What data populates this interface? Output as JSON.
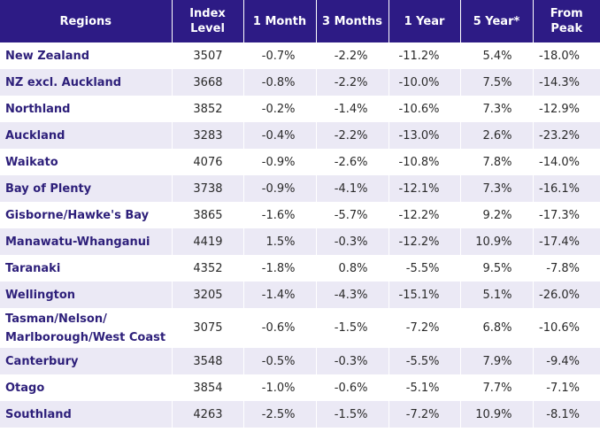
{
  "table": {
    "headers": [
      "Regions",
      "Index Level",
      "1 Month",
      "3 Months",
      "1 Year",
      "5 Year*",
      "From Peak"
    ],
    "rows": [
      [
        "New Zealand",
        "3507",
        "-0.7%",
        "-2.2%",
        "-11.2%",
        "5.4%",
        "-18.0%"
      ],
      [
        "NZ excl. Auckland",
        "3668",
        "-0.8%",
        "-2.2%",
        "-10.0%",
        "7.5%",
        "-14.3%"
      ],
      [
        "Northland",
        "3852",
        "-0.2%",
        "-1.4%",
        "-10.6%",
        "7.3%",
        "-12.9%"
      ],
      [
        "Auckland",
        "3283",
        "-0.4%",
        "-2.2%",
        "-13.0%",
        "2.6%",
        "-23.2%"
      ],
      [
        "Waikato",
        "4076",
        "-0.9%",
        "-2.6%",
        "-10.8%",
        "7.8%",
        "-14.0%"
      ],
      [
        "Bay of Plenty",
        "3738",
        "-0.9%",
        "-4.1%",
        "-12.1%",
        "7.3%",
        "-16.1%"
      ],
      [
        "Gisborne/Hawke's Bay",
        "3865",
        "-1.6%",
        "-5.7%",
        "-12.2%",
        "9.2%",
        "-17.3%"
      ],
      [
        "Manawatu-Whanganui",
        "4419",
        "1.5%",
        "-0.3%",
        "-12.2%",
        "10.9%",
        "-17.4%"
      ],
      [
        "Taranaki",
        "4352",
        "-1.8%",
        "0.8%",
        "-5.5%",
        "9.5%",
        "-7.8%"
      ],
      [
        "Wellington",
        "3205",
        "-1.4%",
        "-4.3%",
        "-15.1%",
        "5.1%",
        "-26.0%"
      ],
      [
        "Tasman/Nelson/ Marlborough/West Coast",
        "3075",
        "-0.6%",
        "-1.5%",
        "-7.2%",
        "6.8%",
        "-10.6%"
      ],
      [
        "Canterbury",
        "3548",
        "-0.5%",
        "-0.3%",
        "-5.5%",
        "7.9%",
        "-9.4%"
      ],
      [
        "Otago",
        "3854",
        "-1.0%",
        "-0.6%",
        "-5.1%",
        "7.7%",
        "-7.1%"
      ],
      [
        "Southland",
        "4263",
        "-2.5%",
        "-1.5%",
        "-7.2%",
        "10.9%",
        "-8.1%"
      ]
    ]
  }
}
